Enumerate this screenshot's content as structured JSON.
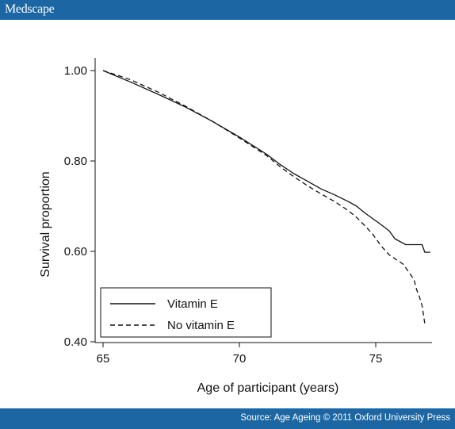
{
  "header": {
    "brand": "Medscape"
  },
  "footer": {
    "source": "Source: Age Ageing © 2011 Oxford University Press"
  },
  "colors": {
    "bar": "#1b66a3",
    "line": "#111111"
  },
  "chart_data": {
    "type": "line",
    "xlabel": "Age of participant (years)",
    "ylabel": "Survival proportion",
    "xlim": [
      65,
      77.2
    ],
    "ylim": [
      0.4,
      1.03
    ],
    "xticks": [
      65,
      70,
      75
    ],
    "yticks": [
      0.4,
      0.6,
      0.8,
      1.0
    ],
    "ytick_labels": [
      "0.40",
      "0.60",
      "0.80",
      "1.00"
    ],
    "grid": false,
    "legend": {
      "position": "bottom-left",
      "entries": [
        "Vitamin E",
        "No vitamin E"
      ]
    },
    "series": [
      {
        "name": "Vitamin E",
        "style": "solid",
        "x": [
          65.0,
          66.0,
          67.0,
          68.0,
          69.0,
          70.0,
          71.0,
          71.5,
          72.0,
          72.5,
          73.0,
          73.5,
          74.0,
          74.3,
          74.6,
          74.9,
          75.2,
          75.5,
          75.7,
          76.1,
          76.5,
          76.7,
          76.8,
          77.0
        ],
        "y": [
          1.0,
          0.975,
          0.948,
          0.92,
          0.888,
          0.853,
          0.815,
          0.792,
          0.772,
          0.755,
          0.738,
          0.725,
          0.71,
          0.7,
          0.685,
          0.672,
          0.659,
          0.645,
          0.628,
          0.615,
          0.615,
          0.615,
          0.598,
          0.598
        ]
      },
      {
        "name": "No vitamin E",
        "style": "dashed",
        "x": [
          65.0,
          66.0,
          67.0,
          68.0,
          69.0,
          70.0,
          71.0,
          71.5,
          72.0,
          72.5,
          73.0,
          73.5,
          74.0,
          74.3,
          74.6,
          74.9,
          75.2,
          75.5,
          76.0,
          76.2,
          76.4,
          76.5,
          76.6,
          76.7,
          76.75,
          76.8
        ],
        "y": [
          1.0,
          0.98,
          0.953,
          0.922,
          0.888,
          0.851,
          0.812,
          0.787,
          0.765,
          0.745,
          0.727,
          0.71,
          0.69,
          0.675,
          0.657,
          0.637,
          0.612,
          0.592,
          0.572,
          0.555,
          0.538,
          0.515,
          0.5,
          0.48,
          0.46,
          0.44
        ]
      }
    ]
  }
}
